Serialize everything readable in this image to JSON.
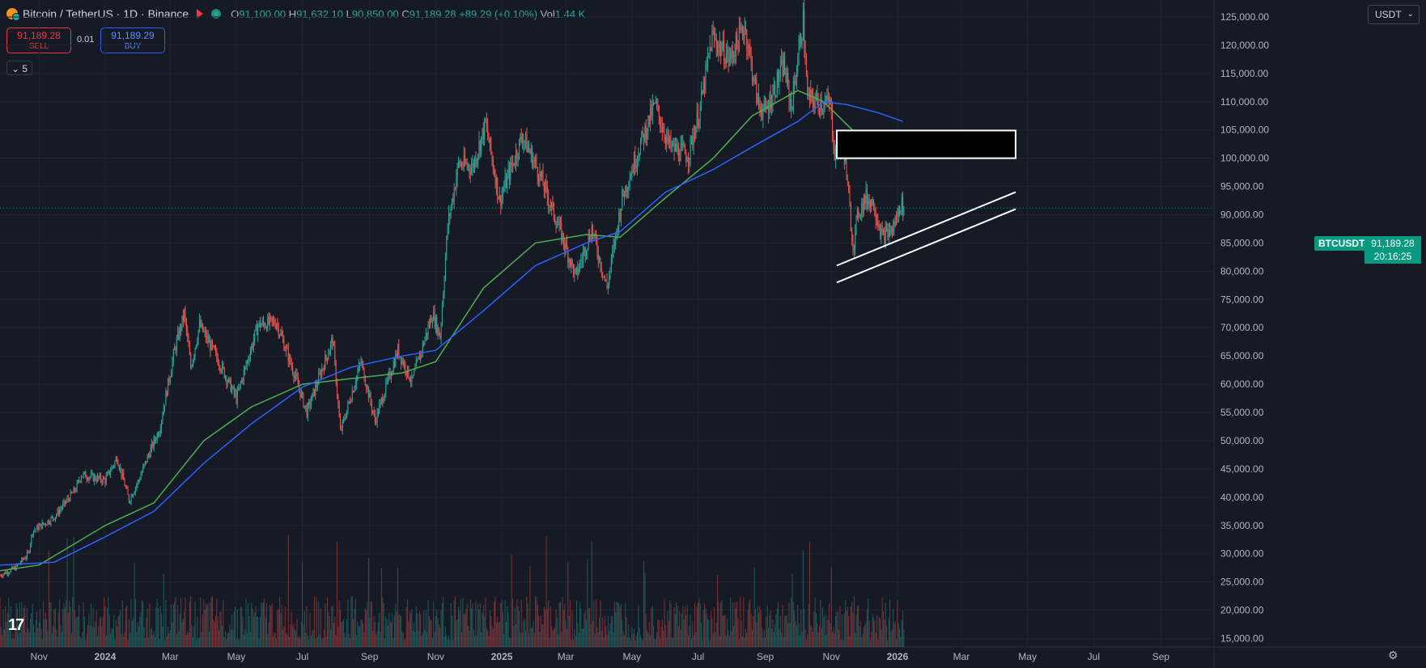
{
  "header": {
    "symbol_title": "Bitcoin / TetherUS · 1D · Binance",
    "ohlc": {
      "o_label": "O",
      "o_value": "91,100.00",
      "h_label": "H",
      "h_value": "91,632.10",
      "l_label": "L",
      "l_value": "90,850.00",
      "c_label": "C",
      "c_value": "91,189.28",
      "change": "+89.29 (+0.10%)",
      "vol_label": "Vol",
      "vol_value": "1.44 K"
    }
  },
  "trade": {
    "sell_price": "91,189.28",
    "sell_label": "SELL",
    "spread": "0.01",
    "buy_price": "91,189.29",
    "buy_label": "BUY"
  },
  "indicators_toggle": "5",
  "currency": {
    "selected": "USDT"
  },
  "last_price": {
    "symbol": "BTCUSDT",
    "price": "91,189.28",
    "countdown": "20:16:25"
  },
  "logo_text": "17",
  "colors": {
    "background": "#161a25",
    "grid": "#1f2330",
    "up": "#26a69a",
    "down": "#ef5350",
    "ma_fast": "#4caf50",
    "ma_slow": "#2962ff",
    "drawing": "#ffffff",
    "price_line": "#089981"
  },
  "icons": {
    "settings": "gear-icon",
    "dropdown": "chevron-down-icon",
    "logo": "tradingview-logo"
  },
  "chart_data": {
    "type": "candlestick",
    "title": "Bitcoin / TetherUS · 1D · Binance",
    "x_range": [
      "2023-09-26",
      "2026-10-20"
    ],
    "y_range": [
      13500,
      128000
    ],
    "xticks": [
      "Nov",
      "2024",
      "Mar",
      "May",
      "Jul",
      "Sep",
      "Nov",
      "2025",
      "Mar",
      "May",
      "Jul",
      "Sep",
      "Nov",
      "2026",
      "Mar",
      "May",
      "Jul",
      "Sep"
    ],
    "xtick_dates": [
      "2023-11-01",
      "2024-01-01",
      "2024-03-01",
      "2024-05-01",
      "2024-07-01",
      "2024-09-01",
      "2024-11-01",
      "2025-01-01",
      "2025-03-01",
      "2025-05-01",
      "2025-07-01",
      "2025-09-01",
      "2025-11-01",
      "2026-01-01",
      "2026-03-01",
      "2026-05-01",
      "2026-07-01",
      "2026-09-01"
    ],
    "yticks": [
      15000,
      20000,
      25000,
      30000,
      35000,
      40000,
      45000,
      50000,
      55000,
      60000,
      65000,
      70000,
      75000,
      80000,
      85000,
      90000,
      95000,
      100000,
      105000,
      110000,
      115000,
      120000,
      125000
    ],
    "ytick_labels": [
      "15,000.00",
      "20,000.00",
      "25,000.00",
      "30,000.00",
      "35,000.00",
      "40,000.00",
      "45,000.00",
      "50,000.00",
      "55,000.00",
      "60,000.00",
      "65,000.00",
      "70,000.00",
      "75,000.00",
      "80,000.00",
      "85,000.00",
      "90,000.00",
      "95,000.00",
      "100,000.00",
      "105,000.00",
      "110,000.00",
      "115,000.00",
      "120,000.00",
      "125,000.00"
    ],
    "price_path": [
      [
        "2023-09-26",
        26200
      ],
      [
        "2023-10-10",
        27500
      ],
      [
        "2023-10-22",
        30000
      ],
      [
        "2023-10-26",
        34000
      ],
      [
        "2023-11-15",
        36500
      ],
      [
        "2023-12-05",
        41500
      ],
      [
        "2023-12-10",
        44000
      ],
      [
        "2024-01-01",
        43000
      ],
      [
        "2024-01-12",
        47000
      ],
      [
        "2024-01-23",
        39500
      ],
      [
        "2024-02-01",
        43000
      ],
      [
        "2024-02-10",
        47500
      ],
      [
        "2024-02-20",
        52000
      ],
      [
        "2024-03-05",
        66000
      ],
      [
        "2024-03-14",
        72500
      ],
      [
        "2024-03-20",
        63000
      ],
      [
        "2024-03-28",
        70500
      ],
      [
        "2024-04-15",
        64000
      ],
      [
        "2024-05-01",
        57500
      ],
      [
        "2024-05-21",
        70500
      ],
      [
        "2024-06-07",
        71000
      ],
      [
        "2024-06-25",
        61000
      ],
      [
        "2024-07-05",
        55000
      ],
      [
        "2024-07-29",
        68000
      ],
      [
        "2024-08-05",
        51500
      ],
      [
        "2024-08-24",
        64000
      ],
      [
        "2024-09-06",
        53500
      ],
      [
        "2024-09-27",
        66000
      ],
      [
        "2024-10-10",
        60500
      ],
      [
        "2024-10-29",
        72500
      ],
      [
        "2024-11-05",
        68500
      ],
      [
        "2024-11-12",
        88000
      ],
      [
        "2024-11-22",
        99000
      ],
      [
        "2024-12-05",
        98500
      ],
      [
        "2024-12-17",
        106000
      ],
      [
        "2024-12-30",
        92500
      ],
      [
        "2025-01-20",
        104000
      ],
      [
        "2025-02-03",
        98000
      ],
      [
        "2025-02-25",
        86500
      ],
      [
        "2025-03-10",
        79000
      ],
      [
        "2025-03-25",
        87500
      ],
      [
        "2025-04-08",
        77000
      ],
      [
        "2025-04-22",
        93000
      ],
      [
        "2025-05-08",
        102000
      ],
      [
        "2025-05-22",
        109500
      ],
      [
        "2025-06-05",
        102000
      ],
      [
        "2025-06-22",
        100500
      ],
      [
        "2025-07-03",
        109000
      ],
      [
        "2025-07-14",
        121500
      ],
      [
        "2025-07-30",
        117500
      ],
      [
        "2025-08-13",
        123500
      ],
      [
        "2025-08-25",
        110000
      ],
      [
        "2025-09-01",
        108000
      ],
      [
        "2025-09-18",
        116500
      ],
      [
        "2025-09-25",
        109000
      ],
      [
        "2025-10-06",
        124500
      ],
      [
        "2025-10-10",
        110500
      ],
      [
        "2025-10-20",
        110000
      ],
      [
        "2025-10-31",
        109500
      ],
      [
        "2025-11-04",
        101000
      ],
      [
        "2025-11-12",
        103000
      ],
      [
        "2025-11-21",
        84500
      ],
      [
        "2025-11-26",
        90500
      ],
      [
        "2025-12-03",
        93000
      ],
      [
        "2025-12-10",
        92000
      ],
      [
        "2025-12-18",
        86000
      ],
      [
        "2025-12-28",
        87500
      ],
      [
        "2026-01-04",
        92000
      ],
      [
        "2026-01-07",
        91189
      ]
    ],
    "ma_fast_path": [
      [
        "2023-09-26",
        27000
      ],
      [
        "2023-11-01",
        28000
      ],
      [
        "2024-01-01",
        35000
      ],
      [
        "2024-02-15",
        39000
      ],
      [
        "2024-04-01",
        50000
      ],
      [
        "2024-05-15",
        56000
      ],
      [
        "2024-07-01",
        60000
      ],
      [
        "2024-08-15",
        61000
      ],
      [
        "2024-10-01",
        62000
      ],
      [
        "2024-11-01",
        64000
      ],
      [
        "2024-12-15",
        77000
      ],
      [
        "2025-02-01",
        85000
      ],
      [
        "2025-03-20",
        86500
      ],
      [
        "2025-04-20",
        86000
      ],
      [
        "2025-06-01",
        93000
      ],
      [
        "2025-07-15",
        100000
      ],
      [
        "2025-08-20",
        107500
      ],
      [
        "2025-10-01",
        112000
      ],
      [
        "2025-10-25",
        110000
      ],
      [
        "2025-11-15",
        106000
      ],
      [
        "2025-12-10",
        101500
      ],
      [
        "2026-01-06",
        100000
      ]
    ],
    "ma_slow_path": [
      [
        "2023-09-26",
        28000
      ],
      [
        "2023-11-15",
        28500
      ],
      [
        "2024-01-01",
        33000
      ],
      [
        "2024-02-15",
        37500
      ],
      [
        "2024-04-01",
        46000
      ],
      [
        "2024-05-15",
        53000
      ],
      [
        "2024-07-01",
        59500
      ],
      [
        "2024-08-15",
        63000
      ],
      [
        "2024-10-01",
        65000
      ],
      [
        "2024-11-01",
        66000
      ],
      [
        "2024-12-15",
        73000
      ],
      [
        "2025-02-01",
        81000
      ],
      [
        "2025-03-20",
        85000
      ],
      [
        "2025-04-20",
        87000
      ],
      [
        "2025-06-01",
        94000
      ],
      [
        "2025-07-15",
        98000
      ],
      [
        "2025-08-20",
        102000
      ],
      [
        "2025-10-01",
        106500
      ],
      [
        "2025-10-25",
        110000
      ],
      [
        "2025-11-15",
        109500
      ],
      [
        "2025-12-15",
        108000
      ],
      [
        "2026-01-06",
        106500
      ]
    ],
    "drawings": {
      "zone": {
        "start": "2025-11-06",
        "end": "2026-04-20",
        "top": 104900,
        "bottom": 100000
      },
      "channel_upper": {
        "start": [
          "2025-11-06",
          81000
        ],
        "end": [
          "2026-04-20",
          94000
        ]
      },
      "channel_lower": {
        "start": [
          "2025-11-06",
          78000
        ],
        "end": [
          "2026-04-20",
          91000
        ]
      }
    },
    "last_close": 91189.28
  }
}
